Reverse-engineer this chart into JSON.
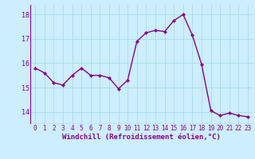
{
  "x": [
    0,
    1,
    2,
    3,
    4,
    5,
    6,
    7,
    8,
    9,
    10,
    11,
    12,
    13,
    14,
    15,
    16,
    17,
    18,
    19,
    20,
    21,
    22,
    23
  ],
  "y": [
    15.8,
    15.6,
    15.2,
    15.1,
    15.5,
    15.8,
    15.5,
    15.5,
    15.4,
    14.95,
    15.3,
    16.9,
    17.25,
    17.35,
    17.3,
    17.75,
    18.0,
    17.15,
    15.95,
    14.05,
    13.85,
    13.95,
    13.85,
    13.8
  ],
  "line_color": "#880088",
  "marker": "D",
  "markersize": 2.0,
  "linewidth": 1.0,
  "bg_color": "#cceeff",
  "grid_color": "#aadddd",
  "xlabel": "Windchill (Refroidissement éolien,°C)",
  "xlabel_fontsize": 6.5,
  "xtick_fontsize": 5.5,
  "ytick_fontsize": 6.0,
  "ylim": [
    13.5,
    18.4
  ],
  "xlim": [
    -0.5,
    23.5
  ],
  "yticks": [
    14,
    15,
    16,
    17,
    18
  ],
  "xticks": [
    0,
    1,
    2,
    3,
    4,
    5,
    6,
    7,
    8,
    9,
    10,
    11,
    12,
    13,
    14,
    15,
    16,
    17,
    18,
    19,
    20,
    21,
    22,
    23
  ]
}
